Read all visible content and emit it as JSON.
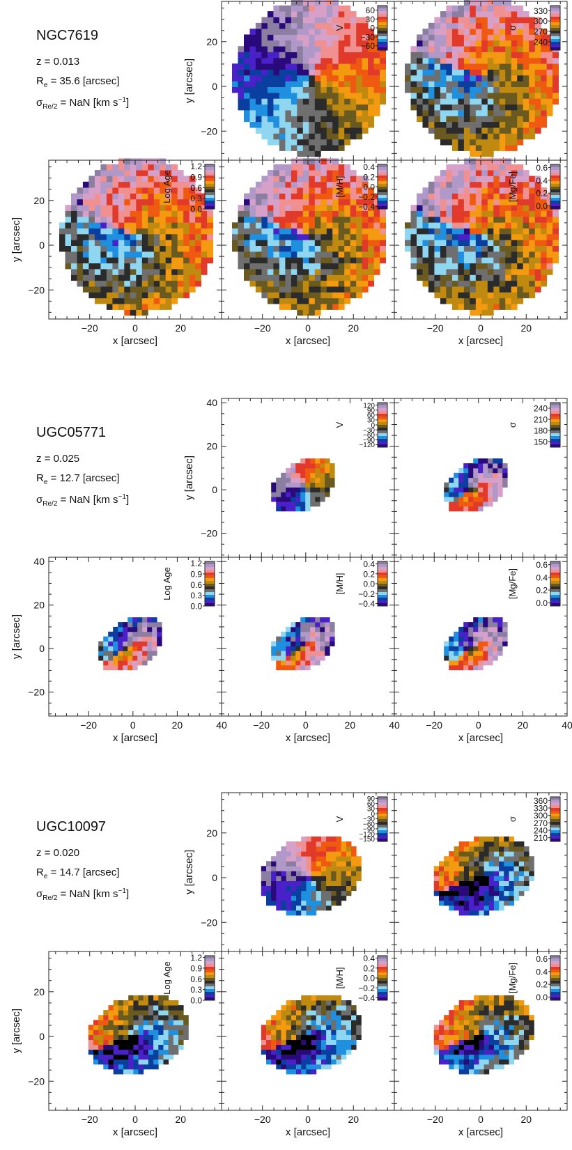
{
  "galaxies": [
    {
      "name": "NGC7619",
      "z_label": "z = 0.013",
      "re_value": "35.6",
      "re_unit": "[arcsec]",
      "sigma_value": "NaN",
      "sigma_unit_prefix": "[km s",
      "sigma_unit_exp": "−1",
      "sigma_unit_suffix": "]"
    },
    {
      "name": "UGC05771",
      "z_label": "z = 0.025",
      "re_value": "12.7",
      "re_unit": "[arcsec]",
      "sigma_value": "NaN",
      "sigma_unit_prefix": "[km s",
      "sigma_unit_exp": "−1",
      "sigma_unit_suffix": "]"
    },
    {
      "name": "UGC10097",
      "z_label": "z = 0.020",
      "re_value": "14.7",
      "re_unit": "[arcsec]",
      "sigma_value": "NaN",
      "sigma_unit_prefix": "[km s",
      "sigma_unit_exp": "−1",
      "sigma_unit_suffix": "]"
    }
  ],
  "chart_data": [
    {
      "type": "heatmap",
      "galaxy": "NGC7619",
      "panels": [
        "V",
        "σ",
        "Log Age",
        "[M/H]",
        "[Mg/Fe]"
      ],
      "xlabel": "x [arcsec]",
      "ylabel": "y [arcsec]",
      "xlim": [
        -38,
        38
      ],
      "ylim": [
        -33,
        38
      ],
      "xticks": [
        "−20",
        "0",
        "20"
      ],
      "yticks": [
        "20",
        "0",
        "−20"
      ],
      "map_ellipse": {
        "cx": 0,
        "cy": 3,
        "a": 34,
        "b": 35,
        "angle": -20
      },
      "colorbars": [
        {
          "label": "V",
          "range": [
            -75,
            75
          ],
          "ticks": [
            "60",
            "30",
            "0",
            "−30",
            "−60"
          ]
        },
        {
          "label": "σ",
          "range": [
            215,
            345
          ],
          "ticks": [
            "330",
            "300",
            "270",
            "240"
          ]
        },
        {
          "label": "Log Age",
          "range": [
            0,
            1.25
          ],
          "ticks": [
            "1.2",
            "0.9",
            "0.6",
            "0.3",
            "0.0"
          ]
        },
        {
          "label": "[M/H]",
          "range": [
            -0.45,
            0.45
          ],
          "ticks": [
            "0.4",
            "0.2",
            "0.0",
            "−0.2",
            "−0.4"
          ]
        },
        {
          "label": "[Mg/Fe]",
          "range": [
            -0.05,
            0.65
          ],
          "ticks": [
            "0.6",
            "0.4",
            "0.2",
            "0.0"
          ]
        }
      ]
    },
    {
      "type": "heatmap",
      "galaxy": "UGC05771",
      "panels": [
        "V",
        "σ",
        "Log Age",
        "[M/H]",
        "[Mg/Fe]"
      ],
      "xlabel": "x [arcsec]",
      "ylabel": "y [arcsec]",
      "xlim": [
        -38,
        40
      ],
      "ylim": [
        -31,
        42
      ],
      "xticks": [
        "−20",
        "0",
        "20",
        "40"
      ],
      "yticks": [
        "40",
        "20",
        "0",
        "−20"
      ],
      "map_ellipse": {
        "cx": -2,
        "cy": 1,
        "a": 16,
        "b": 11,
        "angle": 35
      },
      "colorbars": [
        {
          "label": "V",
          "range": [
            -135,
            135
          ],
          "ticks": [
            "120",
            "90",
            "60",
            "30",
            "0",
            "−30",
            "−60",
            "−90",
            "−120"
          ]
        },
        {
          "label": "σ",
          "range": [
            135,
            255
          ],
          "ticks": [
            "240",
            "210",
            "180",
            "150"
          ]
        },
        {
          "label": "Log Age",
          "range": [
            0,
            1.25
          ],
          "ticks": [
            "1.2",
            "0.9",
            "0.6",
            "0.3",
            "0.0"
          ]
        },
        {
          "label": "[M/H]",
          "range": [
            -0.45,
            0.45
          ],
          "ticks": [
            "0.4",
            "0.2",
            "0.0",
            "−0.2",
            "−0.4"
          ]
        },
        {
          "label": "[Mg/Fe]",
          "range": [
            -0.05,
            0.65
          ],
          "ticks": [
            "0.6",
            "0.4",
            "0.2",
            "0.0"
          ]
        }
      ]
    },
    {
      "type": "heatmap",
      "galaxy": "UGC10097",
      "panels": [
        "V",
        "σ",
        "Log Age",
        "[M/H]",
        "[Mg/Fe]"
      ],
      "xlabel": "x [arcsec]",
      "ylabel": "y [arcsec]",
      "xlim": [
        -38,
        38
      ],
      "ylim": [
        -33,
        38
      ],
      "xticks": [
        "−20",
        "0",
        "20"
      ],
      "yticks": [
        "20",
        "0",
        "−20"
      ],
      "map_ellipse": {
        "cx": 0,
        "cy": 0,
        "a": 23,
        "b": 17,
        "angle": 20
      },
      "colorbars": [
        {
          "label": "V",
          "range": [
            -165,
            100
          ],
          "ticks": [
            "90",
            "60",
            "30",
            "0",
            "−30",
            "−60",
            "−90",
            "−120",
            "−150"
          ]
        },
        {
          "label": "σ",
          "range": [
            195,
            375
          ],
          "ticks": [
            "360",
            "330",
            "300",
            "270",
            "240",
            "210"
          ]
        },
        {
          "label": "Log Age",
          "range": [
            0,
            1.25
          ],
          "ticks": [
            "1.2",
            "0.9",
            "0.6",
            "0.3",
            "0.0"
          ]
        },
        {
          "label": "[M/H]",
          "range": [
            -0.45,
            0.45
          ],
          "ticks": [
            "0.4",
            "0.2",
            "0.0",
            "−0.2",
            "−0.4"
          ]
        },
        {
          "label": "[Mg/Fe]",
          "range": [
            -0.05,
            0.65
          ],
          "ticks": [
            "0.6",
            "0.4",
            "0.2",
            "0.0"
          ]
        }
      ]
    }
  ],
  "colormap": [
    "#2a0a7a",
    "#4a20c8",
    "#0a3fa0",
    "#1f8fe0",
    "#8fd6f0",
    "#6f6f6f",
    "#2b2b2b",
    "#6b5a20",
    "#c08a10",
    "#f39a10",
    "#f05a10",
    "#e23a2a",
    "#f09090",
    "#d6a0c8",
    "#b098c8",
    "#8c7ea0"
  ]
}
